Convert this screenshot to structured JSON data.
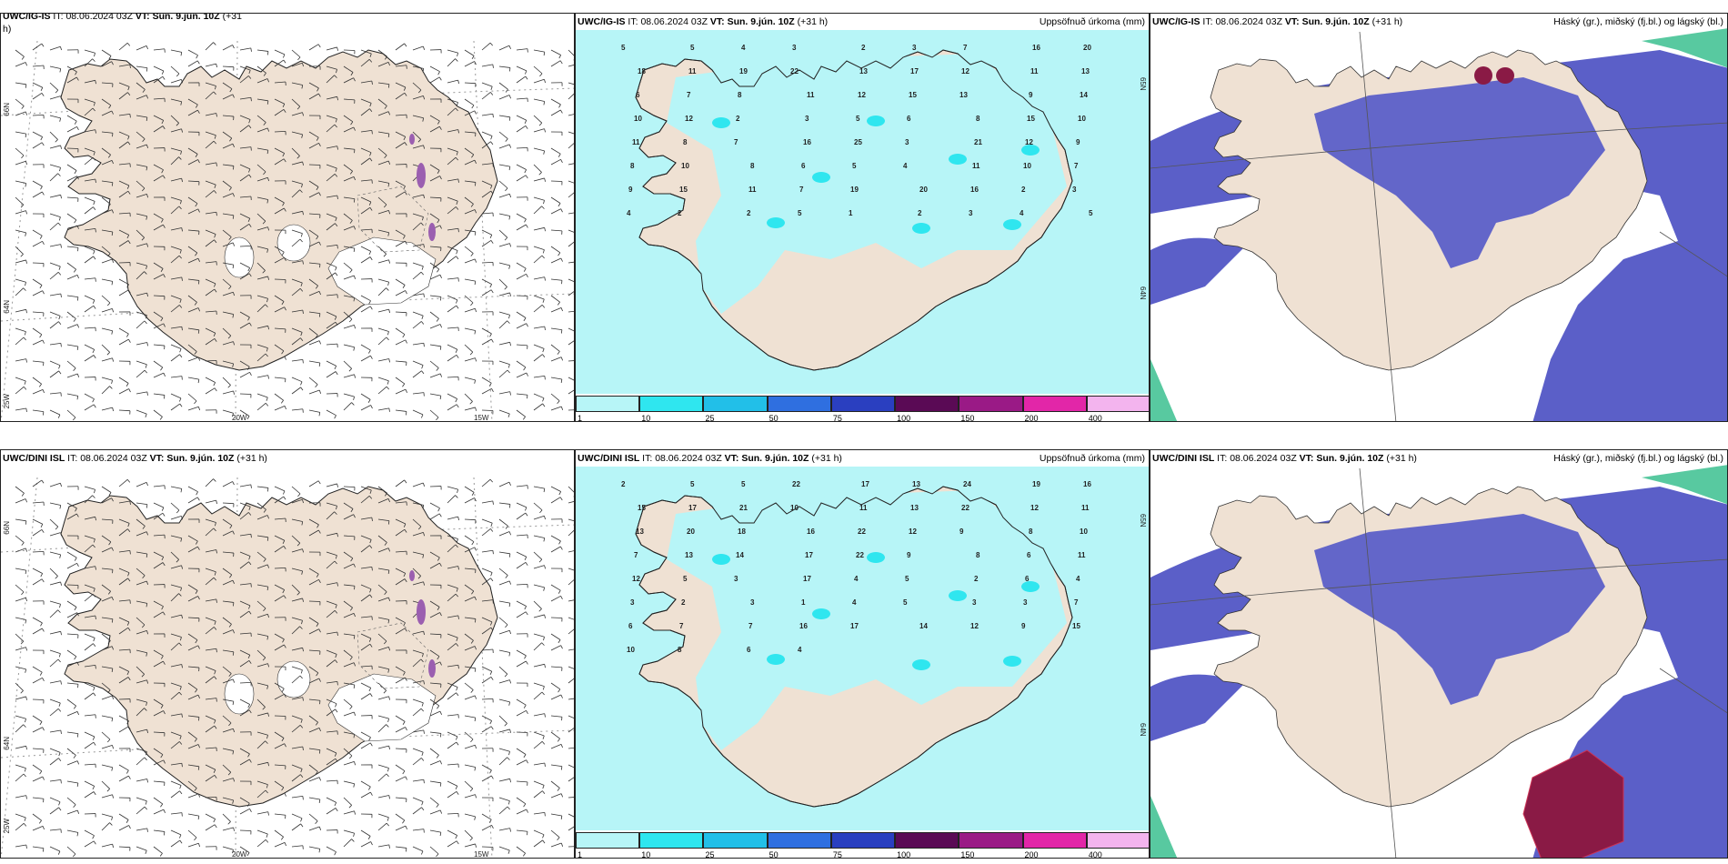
{
  "panels": [
    {
      "id": "p1",
      "header_model": "UWC/IG-IS",
      "it_label": "IT:",
      "it_value": "08.06.2024 03Z",
      "vt_label": "VT: Sun. 9.jún. 10Z",
      "lead": "(+31",
      "lead_wrap": "h)",
      "right_title": "",
      "lat_labels": [
        "66N",
        "64N"
      ],
      "lon_labels": [
        "25W",
        "20W",
        "15W"
      ]
    },
    {
      "id": "p2",
      "header_model": "UWC/IG-IS",
      "it_label": "IT:",
      "it_value": "08.06.2024 03Z",
      "vt_label": "VT: Sun. 9.jún. 10Z",
      "lead": "(+31 h)",
      "right_title": "Uppsöfnuð úrkoma (mm)",
      "lat_labels": [
        "65N",
        "64N"
      ]
    },
    {
      "id": "p3",
      "header_model": "UWC/IG-IS",
      "it_label": "IT:",
      "it_value": "08.06.2024 03Z",
      "vt_label": "VT: Sun. 9.jún. 10Z",
      "lead": "(+31 h)",
      "right_title": "Háský (gr.), miðský (fj.bl.) og lágský (bl.)"
    },
    {
      "id": "p4",
      "header_model": "UWC/DINI ISL",
      "it_label": "IT:",
      "it_value": "08.06.2024 03Z",
      "vt_label": "VT: Sun. 9.jún. 10Z",
      "lead": "(+31 h)",
      "right_title": "",
      "lat_labels": [
        "66N",
        "64N"
      ],
      "lon_labels": [
        "25W",
        "20W",
        "15W"
      ]
    },
    {
      "id": "p5",
      "header_model": "UWC/DINI ISL",
      "it_label": "IT:",
      "it_value": "08.06.2024 03Z",
      "vt_label": "VT: Sun. 9.jún. 10Z",
      "lead": "(+31 h)",
      "right_title": "Uppsöfnuð úrkoma (mm)",
      "lat_labels": [
        "65N",
        "64N"
      ]
    },
    {
      "id": "p6",
      "header_model": "UWC/DINI ISL",
      "it_label": "IT:",
      "it_value": "08.06.2024 03Z",
      "vt_label": "VT: Sun. 9.jún. 10Z",
      "lead": "(+31 h)",
      "right_title": "Háský (gr.), miðský (fj.bl.) og lágský (bl.)"
    }
  ],
  "colorbar": {
    "ticks": [
      "1",
      "10",
      "25",
      "50",
      "75",
      "100",
      "150",
      "200",
      "400"
    ],
    "colors": [
      "#b7f5f7",
      "#2fe6ef",
      "#22bfe8",
      "#2f6fe0",
      "#2a3fc0",
      "#5a0a55",
      "#9a1a86",
      "#e226a8",
      "#f3b4ee"
    ]
  },
  "precip_values_top": [
    "5",
    "5",
    "4",
    "3",
    "2",
    "3",
    "7",
    "16",
    "20",
    "18",
    "11",
    "19",
    "22",
    "13",
    "17",
    "12",
    "11",
    "13",
    "6",
    "7",
    "8",
    "11",
    "12",
    "15",
    "13",
    "9",
    "14",
    "10",
    "12",
    "2",
    "3",
    "5",
    "6",
    "8",
    "15",
    "10",
    "11",
    "8",
    "7",
    "16",
    "25",
    "3",
    "21",
    "12",
    "9",
    "8",
    "10",
    "8",
    "6",
    "5",
    "4",
    "11",
    "10",
    "7",
    "9",
    "15",
    "11",
    "7",
    "19",
    "20",
    "16",
    "2",
    "3",
    "4",
    "2",
    "2",
    "5",
    "1",
    "2",
    "3",
    "4",
    "5"
  ],
  "precip_values_bottom": [
    "2",
    "5",
    "5",
    "22",
    "17",
    "13",
    "24",
    "19",
    "16",
    "15",
    "17",
    "21",
    "10",
    "11",
    "13",
    "22",
    "12",
    "11",
    "13",
    "20",
    "18",
    "16",
    "22",
    "12",
    "9",
    "8",
    "10",
    "7",
    "13",
    "14",
    "17",
    "22",
    "9",
    "8",
    "6",
    "11",
    "12",
    "5",
    "3",
    "17",
    "4",
    "5",
    "2",
    "6",
    "4",
    "3",
    "2",
    "3",
    "1",
    "4",
    "5",
    "3",
    "3",
    "7",
    "6",
    "7",
    "7",
    "16",
    "17",
    "14",
    "12",
    "9",
    "15",
    "10",
    "8",
    "6",
    "4"
  ],
  "colors": {
    "land": "#efe1d3",
    "land_edge": "#222222",
    "sea_precip": "#b7f5f7",
    "cloud_blue": "#5b5fc8",
    "cloud_light": "#8aa0ea",
    "cloud_red": "#8a1a45"
  }
}
